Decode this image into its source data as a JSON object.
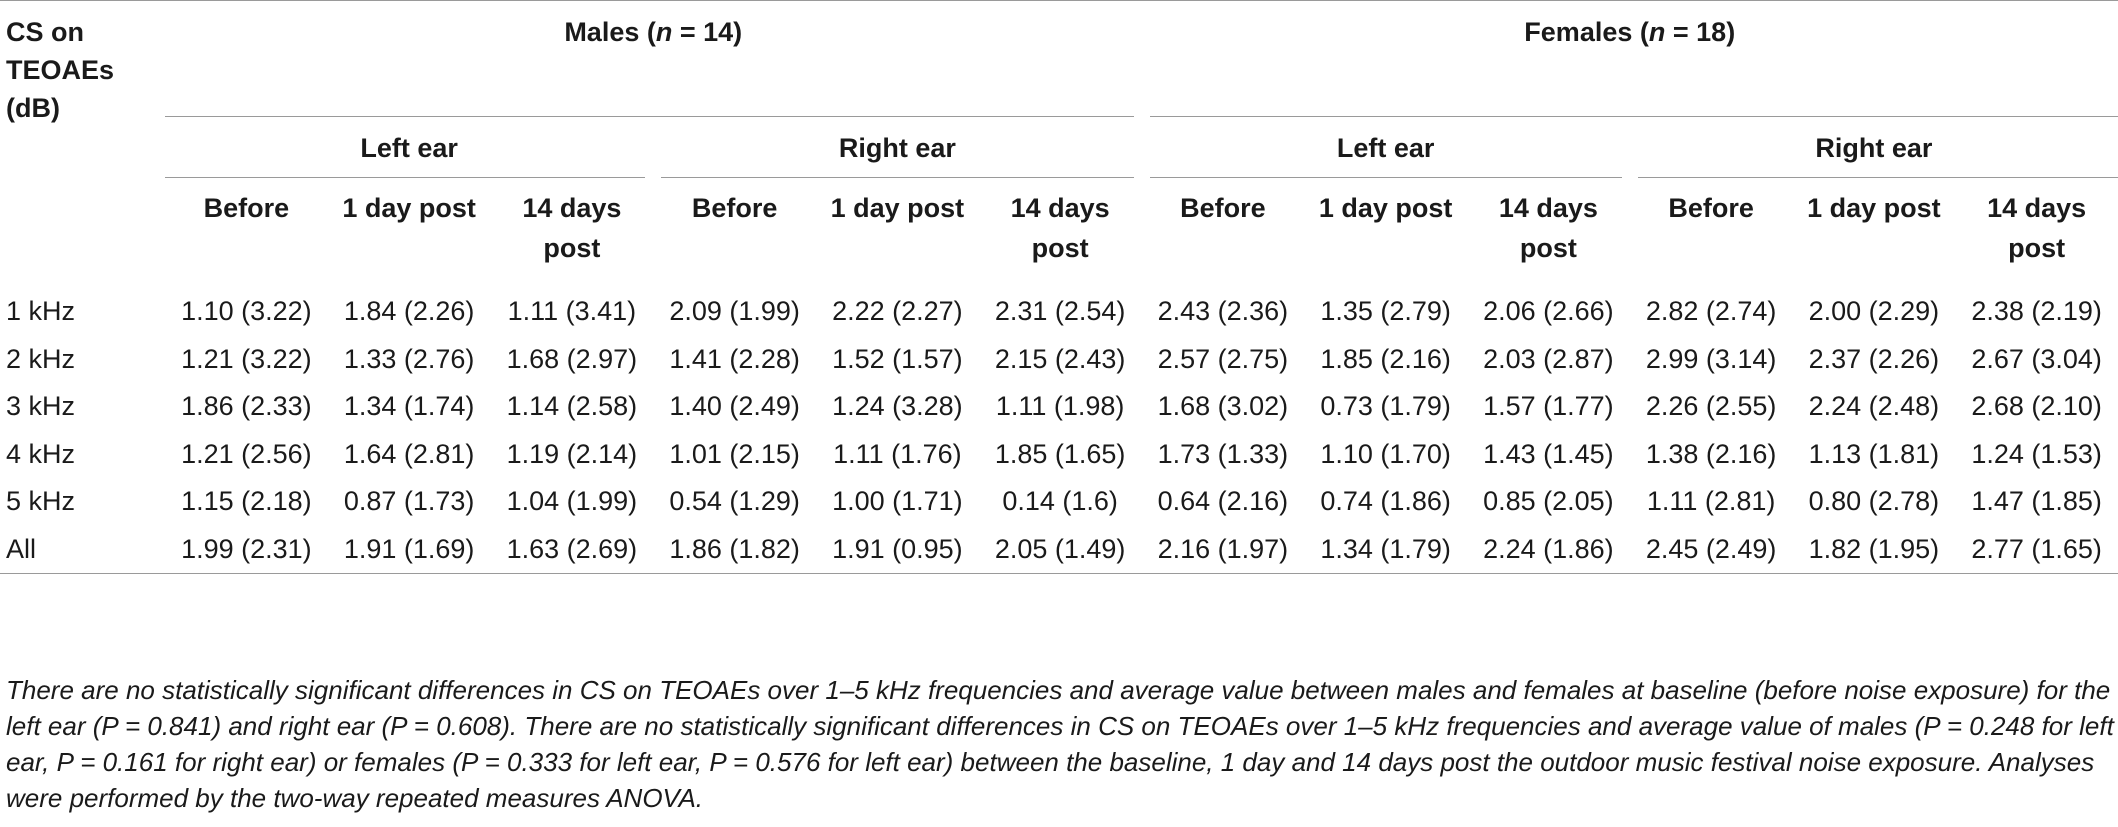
{
  "table": {
    "stub_header": [
      "CS on",
      "TEOAEs",
      "(dB)"
    ],
    "groups": [
      {
        "label": "Males",
        "n_label": "n",
        "n_value": " = 14"
      },
      {
        "label": "Females",
        "n_label": "n",
        "n_value": " = 18"
      }
    ],
    "ears": [
      "Left ear",
      "Right ear",
      "Left ear",
      "Right ear"
    ],
    "subheaders": [
      [
        "Before"
      ],
      [
        "1 day post"
      ],
      [
        "14 days",
        "post"
      ],
      [
        "Before"
      ],
      [
        "1 day post"
      ],
      [
        "14 days",
        "post"
      ],
      [
        "Before"
      ],
      [
        "1 day post"
      ],
      [
        "14 days",
        "post"
      ],
      [
        "Before"
      ],
      [
        "1 day post"
      ],
      [
        "14 days",
        "post"
      ]
    ],
    "rows": [
      {
        "label": "1 kHz",
        "values": [
          "1.10 (3.22)",
          "1.84 (2.26)",
          "1.11 (3.41)",
          "2.09 (1.99)",
          "2.22 (2.27)",
          "2.31 (2.54)",
          "2.43 (2.36)",
          "1.35 (2.79)",
          "2.06 (2.66)",
          "2.82 (2.74)",
          "2.00 (2.29)",
          "2.38 (2.19)"
        ]
      },
      {
        "label": "2 kHz",
        "values": [
          "1.21 (3.22)",
          "1.33 (2.76)",
          "1.68 (2.97)",
          "1.41 (2.28)",
          "1.52 (1.57)",
          "2.15 (2.43)",
          "2.57 (2.75)",
          "1.85 (2.16)",
          "2.03 (2.87)",
          "2.99 (3.14)",
          "2.37 (2.26)",
          "2.67 (3.04)"
        ]
      },
      {
        "label": "3 kHz",
        "values": [
          "1.86 (2.33)",
          "1.34 (1.74)",
          "1.14 (2.58)",
          "1.40 (2.49)",
          "1.24 (3.28)",
          "1.11 (1.98)",
          "1.68 (3.02)",
          "0.73 (1.79)",
          "1.57 (1.77)",
          "2.26 (2.55)",
          "2.24 (2.48)",
          "2.68 (2.10)"
        ]
      },
      {
        "label": "4 kHz",
        "values": [
          "1.21 (2.56)",
          "1.64 (2.81)",
          "1.19 (2.14)",
          "1.01 (2.15)",
          "1.11 (1.76)",
          "1.85 (1.65)",
          "1.73 (1.33)",
          "1.10 (1.70)",
          "1.43 (1.45)",
          "1.38 (2.16)",
          "1.13 (1.81)",
          "1.24 (1.53)"
        ]
      },
      {
        "label": "5 kHz",
        "values": [
          "1.15 (2.18)",
          "0.87 (1.73)",
          "1.04 (1.99)",
          "0.54 (1.29)",
          "1.00 (1.71)",
          "0.14 (1.6)",
          "0.64 (2.16)",
          "0.74 (1.86)",
          "0.85 (2.05)",
          "1.11 (2.81)",
          "0.80 (2.78)",
          "1.47 (1.85)"
        ]
      },
      {
        "label": "All",
        "values": [
          "1.99 (2.31)",
          "1.91 (1.69)",
          "1.63 (2.69)",
          "1.86 (1.82)",
          "1.91 (0.95)",
          "2.05 (1.49)",
          "2.16 (1.97)",
          "1.34 (1.79)",
          "2.24 (1.86)",
          "2.45 (2.49)",
          "1.82 (1.95)",
          "2.77 (1.65)"
        ]
      }
    ]
  },
  "footnote": "There are no statistically significant differences in CS on TEOAEs over 1–5 kHz frequencies and average value between males and females at baseline (before noise exposure) for the left ear (P = 0.841) and right ear (P = 0.608). There are no statistically significant differences in CS on TEOAEs over 1–5 kHz frequencies and average value of males (P = 0.248 for left ear, P = 0.161 for right ear) or females (P = 0.333 for left ear, P = 0.576 for left ear) between the baseline, 1 day and 14 days post the outdoor music festival noise exposure. Analyses were performed by the two-way repeated measures ANOVA."
}
